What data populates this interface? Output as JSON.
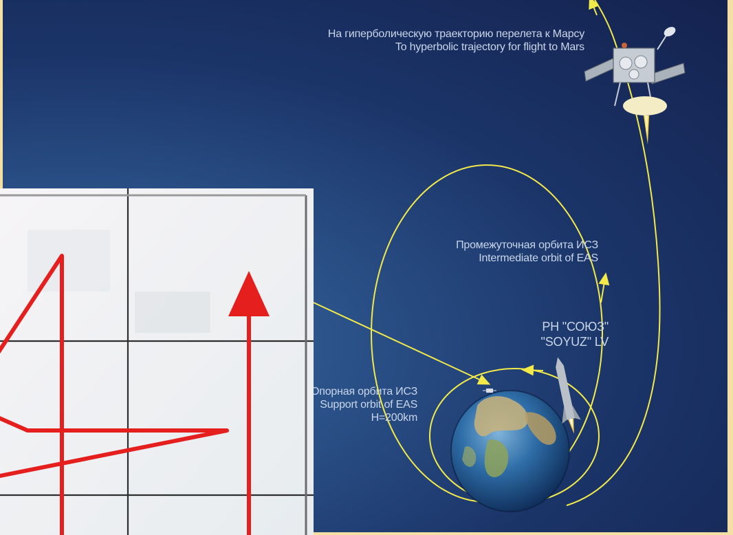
{
  "diagram": {
    "labels": {
      "hyperbolic_ru": "На гиперболическую траекторию перелета к Марсу",
      "hyperbolic_en": "To hyperbolic trajectory for flight to Mars",
      "intermediate_ru": "Промежуточная орбита ИСЗ",
      "intermediate_en": "Intermediate orbit of EAS",
      "launcher_ru": "РН \"СОЮЗ\"",
      "launcher_en": "\"SOYUZ\" LV",
      "support_ru": "Опорная орбита ИСЗ",
      "support_en": "Support orbit of EAS",
      "support_altitude": "H=200km"
    },
    "icons": {
      "earth": "earth-icon",
      "spacecraft": "spacecraft-icon",
      "rocket": "rocket-icon"
    },
    "colors": {
      "orbit": "#f3ea4a",
      "space_dark": "#14224f",
      "space_light": "#3f74a8",
      "text": "#c9d6ea",
      "inset_lines": "#e51e1e",
      "frame": "#f4e0a4"
    }
  }
}
